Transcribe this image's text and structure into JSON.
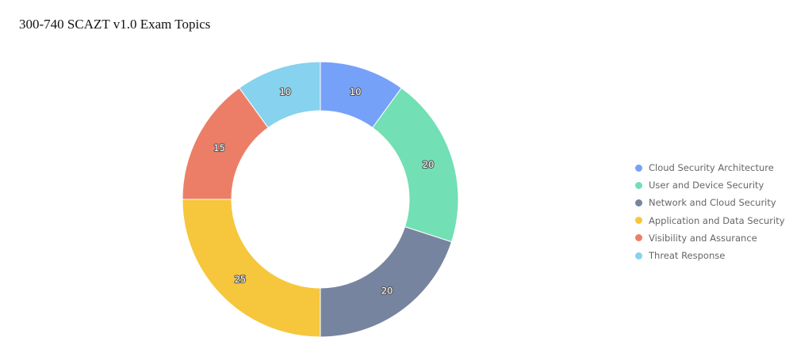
{
  "chart_data": {
    "type": "pie",
    "title": "300-740 SCAZT v1.0 Exam Topics",
    "donut": true,
    "legend_position": "right",
    "categories": [
      "Cloud Security Architecture",
      "User and Device Security",
      "Network and Cloud Security",
      "Application and Data Security",
      "Visibility and Assurance",
      "Threat Response"
    ],
    "values": [
      10,
      20,
      20,
      25,
      15,
      10
    ],
    "colors": [
      "#76a1f8",
      "#72dfb5",
      "#77849f",
      "#f6c63c",
      "#ec7e67",
      "#86d2ef"
    ]
  }
}
